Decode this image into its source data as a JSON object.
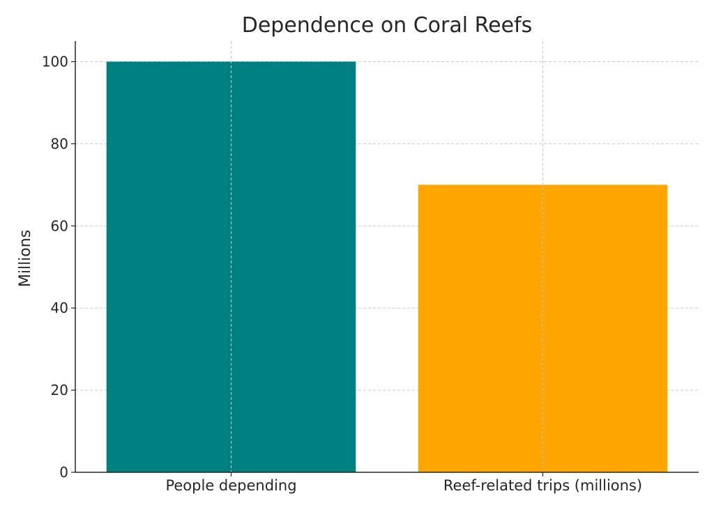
{
  "chart_data": {
    "type": "bar",
    "title": "Dependence on Coral Reefs",
    "xlabel": "",
    "ylabel": "Millions",
    "categories": [
      "People depending",
      "Reef-related trips (millions)"
    ],
    "values": [
      100,
      70
    ],
    "colors": [
      "#008080",
      "#FFA500"
    ],
    "ylim": [
      0,
      105
    ],
    "yticks": [
      0,
      20,
      40,
      60,
      80,
      100
    ],
    "grid": true
  }
}
